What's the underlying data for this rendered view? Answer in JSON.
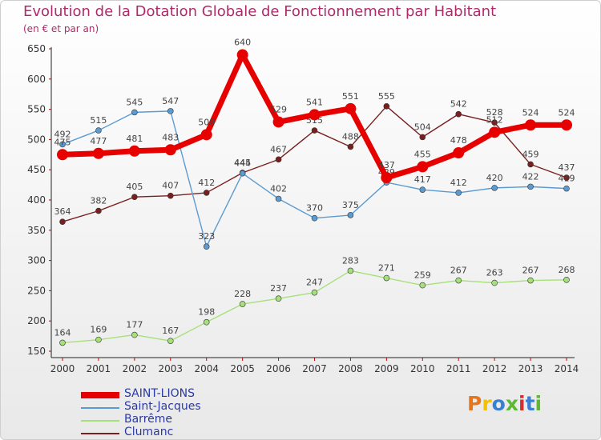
{
  "title": "Evolution de la Dotation Globale de Fonctionnement par Habitant",
  "subtitle": "(en € et par an)",
  "logo": {
    "text": "Proxiti",
    "colors": [
      "#e8751a",
      "#f2c200",
      "#3a7fd0",
      "#5fb832",
      "#d03030",
      "#3a7fd0",
      "#5fb832"
    ]
  },
  "chart_data": {
    "type": "line",
    "x": [
      "2000",
      "2001",
      "2002",
      "2003",
      "2004",
      "2005",
      "2006",
      "2007",
      "2008",
      "2009",
      "2010",
      "2011",
      "2012",
      "2013",
      "2014"
    ],
    "ylim": [
      150,
      650
    ],
    "yticks": [
      150,
      200,
      250,
      300,
      350,
      400,
      450,
      500,
      550,
      600,
      650
    ],
    "grid": false,
    "legend_position": "bottom-left",
    "series": [
      {
        "name": "SAINT-LIONS",
        "color": "#e60000",
        "values": [
          475,
          477,
          481,
          483,
          508,
          640,
          529,
          541,
          551,
          437,
          455,
          478,
          512,
          524,
          524
        ]
      },
      {
        "name": "Saint-Jacques",
        "color": "#5c9bd1",
        "values": [
          492,
          515,
          545,
          547,
          323,
          444,
          402,
          370,
          375,
          429,
          417,
          412,
          420,
          422,
          419
        ]
      },
      {
        "name": "Barrême",
        "color": "#a6e07a",
        "values": [
          164,
          169,
          177,
          167,
          198,
          228,
          237,
          247,
          283,
          271,
          259,
          267,
          263,
          267,
          268
        ]
      },
      {
        "name": "Clumanc",
        "color": "#7a1f1f",
        "values": [
          364,
          382,
          405,
          407,
          412,
          445,
          467,
          515,
          488,
          555,
          504,
          542,
          528,
          459,
          437
        ]
      }
    ]
  }
}
